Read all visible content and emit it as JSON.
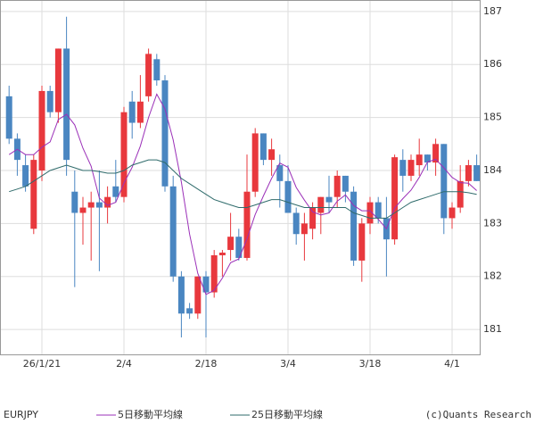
{
  "chart_data": {
    "type": "candlestick",
    "symbol": "EURJPY",
    "credit": "(c)Quants Research",
    "categories": [
      null,
      null,
      null,
      null,
      "26/1/21",
      null,
      null,
      null,
      null,
      null,
      null,
      null,
      null,
      null,
      "2/4",
      null,
      null,
      null,
      null,
      null,
      null,
      null,
      null,
      null,
      "2/18",
      null,
      null,
      null,
      null,
      null,
      null,
      null,
      null,
      null,
      "3/4",
      null,
      null,
      null,
      null,
      null,
      null,
      null,
      null,
      null,
      "3/18",
      null,
      null,
      null,
      null,
      null,
      null,
      null,
      null,
      null,
      "4/1",
      null,
      null,
      null
    ],
    "open": [
      185.4,
      184.6,
      184.1,
      182.9,
      184.0,
      185.5,
      185.1,
      186.3,
      183.6,
      183.2,
      183.3,
      183.4,
      183.3,
      183.7,
      183.5,
      185.3,
      184.9,
      185.4,
      186.1,
      185.7,
      183.7,
      182.0,
      181.4,
      181.3,
      182.0,
      181.7,
      182.4,
      182.5,
      182.75,
      182.35,
      183.6,
      184.7,
      184.2,
      184.1,
      183.8,
      183.2,
      182.8,
      182.9,
      183.2,
      183.5,
      183.5,
      183.9,
      183.6,
      182.3,
      183.0,
      183.4,
      183.1,
      182.7,
      184.2,
      183.9,
      184.1,
      184.3,
      184.15,
      184.5,
      183.1,
      183.3,
      183.8,
      184.1
    ],
    "high": [
      185.6,
      184.7,
      184.3,
      184.3,
      185.6,
      185.6,
      186.3,
      186.9,
      184.0,
      183.5,
      183.6,
      184.0,
      183.7,
      184.2,
      185.2,
      185.5,
      185.8,
      186.3,
      186.2,
      185.8,
      183.9,
      182.1,
      181.5,
      182.0,
      182.1,
      182.5,
      182.5,
      183.2,
      182.9,
      184.3,
      184.8,
      184.7,
      184.6,
      184.3,
      184.1,
      183.3,
      183.2,
      183.4,
      183.5,
      183.9,
      184.0,
      183.9,
      183.7,
      183.1,
      183.5,
      183.5,
      183.5,
      184.3,
      184.4,
      184.3,
      184.6,
      184.3,
      184.6,
      184.5,
      183.4,
      184.1,
      184.2,
      184.3
    ],
    "low": [
      184.5,
      183.9,
      183.6,
      182.8,
      183.8,
      185.0,
      184.9,
      183.9,
      181.8,
      182.6,
      182.3,
      182.1,
      183.0,
      183.4,
      183.4,
      184.6,
      184.8,
      185.3,
      185.6,
      183.6,
      181.9,
      180.85,
      181.2,
      181.2,
      180.85,
      181.6,
      182.0,
      182.3,
      182.3,
      182.3,
      183.5,
      184.1,
      183.9,
      183.3,
      183.2,
      182.6,
      182.3,
      182.7,
      182.8,
      183.2,
      183.3,
      183.4,
      182.2,
      181.9,
      182.8,
      183.0,
      182.0,
      182.6,
      183.6,
      183.8,
      183.9,
      184.0,
      183.9,
      182.8,
      182.9,
      183.2,
      183.7,
      183.8
    ],
    "close": [
      184.6,
      184.2,
      183.7,
      184.2,
      185.5,
      185.1,
      186.3,
      184.2,
      183.2,
      183.3,
      183.4,
      183.3,
      183.5,
      183.5,
      185.1,
      184.9,
      185.3,
      186.2,
      185.7,
      183.7,
      182.0,
      181.3,
      181.3,
      182.0,
      181.7,
      182.4,
      182.45,
      182.75,
      182.35,
      183.6,
      184.7,
      184.2,
      184.4,
      183.8,
      183.2,
      182.8,
      183.0,
      183.3,
      183.5,
      183.4,
      183.9,
      183.6,
      182.3,
      183.0,
      183.4,
      183.1,
      182.7,
      184.25,
      183.9,
      184.2,
      184.3,
      184.15,
      184.5,
      183.1,
      183.3,
      183.8,
      184.1,
      183.8
    ],
    "up_color": "#e8383d",
    "down_color": "#4a86c1",
    "series": [
      {
        "name": "5日移動平均線",
        "color": "#9b30b8",
        "values": [
          184.3,
          184.4,
          184.3,
          184.3,
          184.44,
          184.54,
          184.96,
          185.06,
          184.86,
          184.42,
          184.08,
          183.48,
          183.34,
          183.4,
          183.76,
          184.06,
          184.46,
          185.0,
          185.44,
          185.16,
          184.58,
          183.78,
          182.8,
          182.06,
          181.66,
          181.74,
          181.97,
          182.26,
          182.33,
          182.71,
          183.17,
          183.52,
          183.85,
          184.14,
          184.06,
          183.68,
          183.44,
          183.22,
          183.16,
          183.2,
          183.42,
          183.54,
          183.34,
          183.24,
          183.24,
          183.08,
          182.9,
          183.29,
          183.47,
          183.63,
          183.87,
          184.16,
          184.21,
          184.05,
          183.87,
          183.77,
          183.76,
          183.62
        ]
      },
      {
        "name": "25日移動平均線",
        "color": "#2f6b6b",
        "values": [
          183.6,
          183.65,
          183.7,
          183.8,
          183.9,
          184.0,
          184.05,
          184.1,
          184.05,
          184.0,
          184.0,
          183.98,
          183.95,
          183.95,
          184.0,
          184.1,
          184.15,
          184.2,
          184.2,
          184.15,
          184.0,
          183.85,
          183.75,
          183.65,
          183.55,
          183.45,
          183.4,
          183.35,
          183.3,
          183.3,
          183.35,
          183.4,
          183.45,
          183.45,
          183.4,
          183.35,
          183.3,
          183.3,
          183.3,
          183.3,
          183.3,
          183.3,
          183.2,
          183.15,
          183.1,
          183.1,
          183.1,
          183.2,
          183.3,
          183.4,
          183.45,
          183.5,
          183.55,
          183.6,
          183.6,
          183.6,
          183.58,
          183.55
        ]
      }
    ],
    "ylim": [
      180.53,
      187.2
    ],
    "yticks": [
      181,
      182,
      183,
      184,
      185,
      186,
      187
    ],
    "grid": true
  }
}
